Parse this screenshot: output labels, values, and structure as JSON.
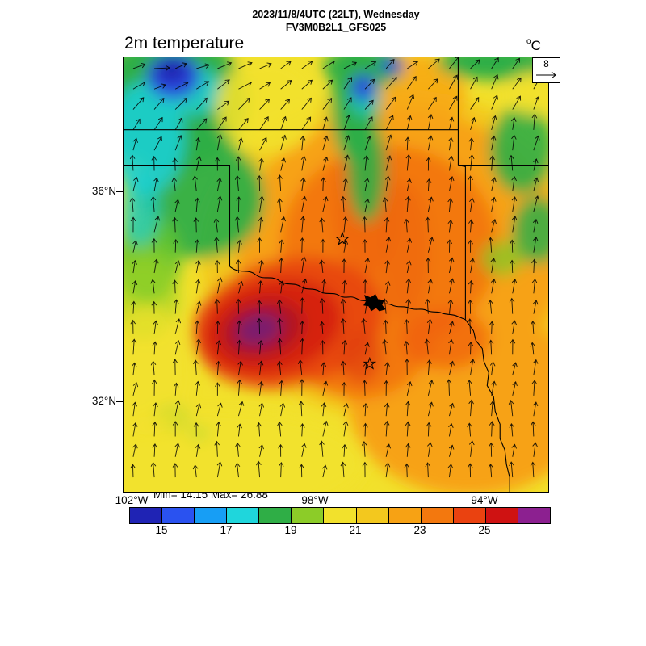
{
  "header": {
    "line1": "2023/11/8/4UTC (22LT), Wednesday",
    "line2": "FV3M0B2L1_GFS025"
  },
  "plot": {
    "variable_label": "2m temperature",
    "unit_sup": "o",
    "unit_base": "C",
    "wind_reference": "8",
    "stats": "Min= 14.15 Max= 26.88",
    "lat_labels": [
      {
        "text": "36°N"
      },
      {
        "text": "32°N"
      }
    ],
    "lon_labels": [
      {
        "text": "102°W"
      },
      {
        "text": "98°W"
      },
      {
        "text": "94°W"
      }
    ]
  },
  "colorbar": {
    "tick_labels": [
      "15",
      "17",
      "19",
      "21",
      "23",
      "25"
    ],
    "colors": [
      "#1f23b4",
      "#2a52f0",
      "#179ef5",
      "#1fd6dc",
      "#2fae46",
      "#8ccc28",
      "#f2e12c",
      "#f3c81e",
      "#f7a214",
      "#f3780e",
      "#ea4210",
      "#cf1212",
      "#8c2090"
    ],
    "min_value": 14.15,
    "max_value": 26.88
  },
  "chart_data": {
    "type": "heatmap",
    "title": "2m temperature",
    "subtitle1": "2023/11/8/4UTC (22LT), Wednesday",
    "subtitle2": "FV3M0B2L1_GFS025",
    "units": "°C",
    "field_min": 14.15,
    "field_max": 26.88,
    "levels": [
      14,
      15,
      16,
      17,
      18,
      19,
      20,
      21,
      22,
      23,
      24,
      25,
      26,
      27
    ],
    "palette": [
      "#1f23b4",
      "#2a52f0",
      "#179ef5",
      "#1fd6dc",
      "#2fae46",
      "#8ccc28",
      "#f2e12c",
      "#f3c81e",
      "#f7a214",
      "#f3780e",
      "#ea4210",
      "#cf1212",
      "#8c2090"
    ],
    "x_axis": {
      "ticks": [
        "102°W",
        "98°W",
        "94°W"
      ]
    },
    "y_axis": {
      "ticks": [
        "36°N",
        "32°N"
      ]
    },
    "wind": {
      "reference_value": 8,
      "style": "vectors",
      "predominant_direction": "southerly flow (arrows point north); arrows veer toward east along the northern edge of the domain"
    },
    "features": [
      "Warm maximum 25-27°C (red/purple core) over northwest Texas and southwest Oklahoma",
      "Cool pool 14-18°C (blue/cyan) in the far northwest near the Kansas border",
      "Green 18-19°C bands along the north edge, a vertical band in central Oklahoma, and over eastern Oklahoma",
      "Broad 21-24°C yellow/orange field over central and eastern Texas and Oklahoma",
      "State borders drawn: Kansas/Oklahoma 37N line, Oklahoma panhandle, 100W Texas border, Red River with Lake Texoma, Arkansas/Missouri lines",
      "Two open star markers: central Oklahoma and north Texas"
    ]
  }
}
